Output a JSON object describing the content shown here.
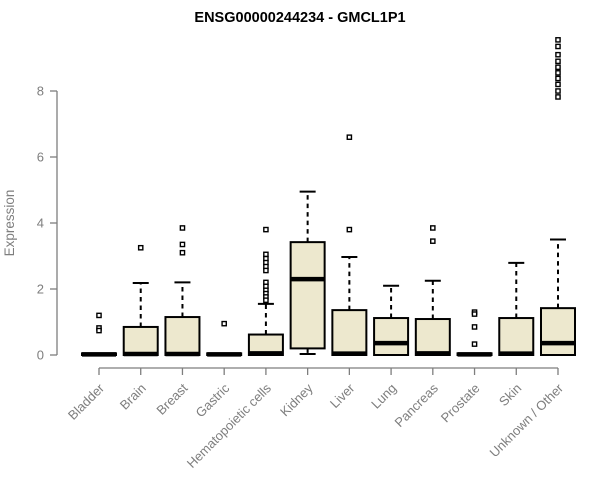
{
  "chart_data": {
    "type": "boxplot",
    "title": "ENSG00000244234 - GMCL1P1",
    "ylabel": "Expression",
    "xlabel": "",
    "yticks": [
      0,
      2,
      4,
      6,
      8
    ],
    "ytick_range": [
      0,
      8
    ],
    "ylim": [
      0,
      9.7
    ],
    "grid": false,
    "legend_position": "none",
    "categories": [
      "Bladder",
      "Brain",
      "Breast",
      "Gastric",
      "Hematopoietic cells",
      "Kidney",
      "Liver",
      "Lung",
      "Pancreas",
      "Prostate",
      "Skin",
      "Unknown / Other"
    ],
    "series": [
      {
        "category": "Bladder",
        "whisker_low": 0,
        "q1": 0,
        "median": 0.02,
        "q3": 0.05,
        "whisker_high": 0.05,
        "outliers": [
          1.2,
          0.82,
          0.74
        ]
      },
      {
        "category": "Brain",
        "whisker_low": 0,
        "q1": 0,
        "median": 0.03,
        "q3": 0.85,
        "whisker_high": 2.18,
        "outliers": [
          3.25
        ]
      },
      {
        "category": "Breast",
        "whisker_low": 0,
        "q1": 0,
        "median": 0.03,
        "q3": 1.15,
        "whisker_high": 2.2,
        "outliers": [
          3.85,
          3.35,
          3.1
        ]
      },
      {
        "category": "Gastric",
        "whisker_low": 0,
        "q1": 0,
        "median": 0.02,
        "q3": 0.05,
        "whisker_high": 0.05,
        "outliers": [
          0.95
        ]
      },
      {
        "category": "Hematopoietic cells",
        "whisker_low": 0,
        "q1": 0,
        "median": 0.05,
        "q3": 0.62,
        "whisker_high": 1.55,
        "outliers": [
          3.8,
          3.05,
          2.92,
          2.8,
          2.68,
          2.56,
          2.2,
          2.08,
          1.96,
          1.86,
          1.76,
          1.66
        ]
      },
      {
        "category": "Kidney",
        "whisker_low": 0.03,
        "q1": 0.2,
        "median": 2.3,
        "q3": 3.42,
        "whisker_high": 4.95,
        "outliers": []
      },
      {
        "category": "Liver",
        "whisker_low": 0,
        "q1": 0,
        "median": 0.04,
        "q3": 1.36,
        "whisker_high": 2.97,
        "outliers": [
          6.6,
          3.8
        ]
      },
      {
        "category": "Lung",
        "whisker_low": 0,
        "q1": 0,
        "median": 0.36,
        "q3": 1.12,
        "whisker_high": 2.1,
        "outliers": []
      },
      {
        "category": "Pancreas",
        "whisker_low": 0,
        "q1": 0,
        "median": 0.05,
        "q3": 1.09,
        "whisker_high": 2.25,
        "outliers": [
          3.85,
          3.45
        ]
      },
      {
        "category": "Prostate",
        "whisker_low": 0,
        "q1": 0,
        "median": 0.02,
        "q3": 0.05,
        "whisker_high": 0.05,
        "outliers": [
          1.3,
          1.24,
          0.85,
          0.33
        ]
      },
      {
        "category": "Skin",
        "whisker_low": 0,
        "q1": 0,
        "median": 0.04,
        "q3": 1.12,
        "whisker_high": 2.79,
        "outliers": []
      },
      {
        "category": "Unknown / Other",
        "whisker_low": 0,
        "q1": 0,
        "median": 0.36,
        "q3": 1.42,
        "whisker_high": 3.5,
        "outliers": [
          9.55,
          9.35,
          9.1,
          8.9,
          8.72,
          8.55,
          8.38,
          8.2,
          8.0,
          7.82
        ]
      }
    ]
  },
  "colors": {
    "background": "#FFFFFF",
    "box_fill": "#EDE8CE",
    "box_stroke": "#000000",
    "median": "#000000",
    "whisker": "#000000",
    "outlier_stroke": "#000000",
    "outlier_fill": "#FFFFFF",
    "axis": "#7E7E7E",
    "axis_text": "#7E7E7E",
    "title": "#000000"
  }
}
